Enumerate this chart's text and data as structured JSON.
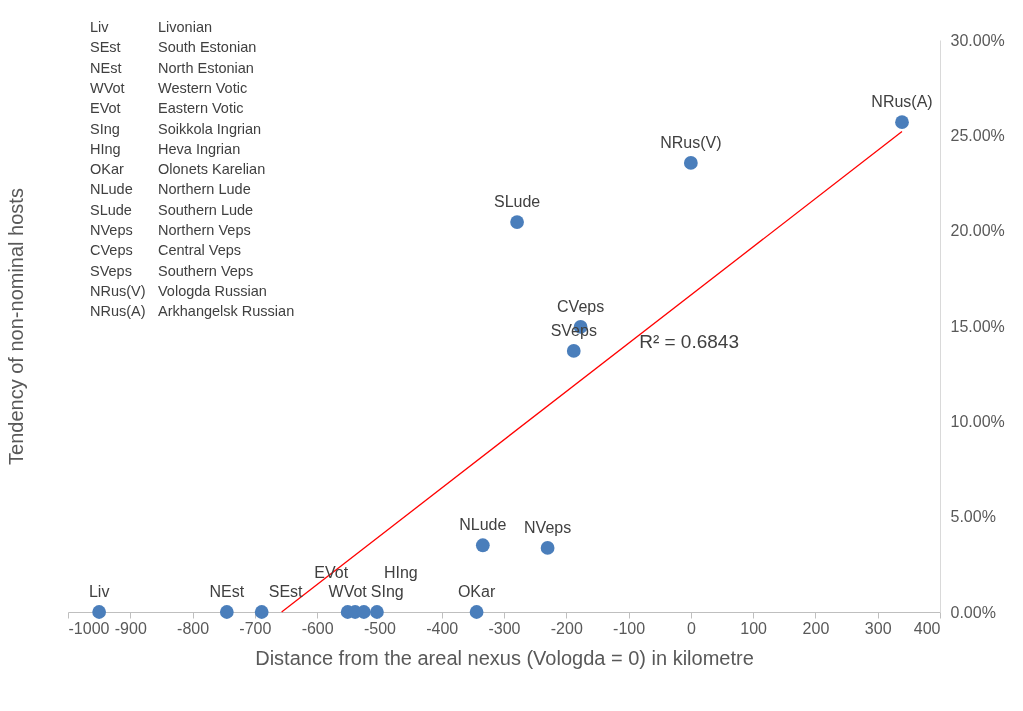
{
  "chart_data": {
    "type": "scatter",
    "xlabel": "Distance from the areal nexus (Vologda = 0) in kilometre",
    "ylabel": "Tendency of non-nominal hosts",
    "xlim": [
      -1000,
      400
    ],
    "xticks": [
      -1000,
      -900,
      -800,
      -700,
      -600,
      -500,
      -400,
      -300,
      -200,
      -100,
      0,
      100,
      200,
      300,
      400
    ],
    "ylim": [
      0,
      30
    ],
    "yticks": [
      {
        "value": 0,
        "label": "0.00%"
      },
      {
        "value": 5,
        "label": "5.00%"
      },
      {
        "value": 10,
        "label": "10.00%"
      },
      {
        "value": 15,
        "label": "15.00%"
      },
      {
        "value": 20,
        "label": "20.00%"
      },
      {
        "value": 25,
        "label": "25.00%"
      },
      {
        "value": 30,
        "label": "30.00%"
      }
    ],
    "series": [
      {
        "color": "#4a7ebb",
        "marker": "circle",
        "x": [
          -950,
          -745,
          -689,
          -551,
          -539,
          -525,
          -504,
          -344,
          -334,
          -279,
          -230,
          -177,
          -188,
          0,
          339
        ],
        "values": [
          0,
          0,
          0,
          0,
          0,
          0,
          0,
          0,
          3.5,
          20.45,
          3.36,
          14.95,
          13.69,
          23.55,
          25.69
        ]
      },
      {
        "type": "line",
        "color": "#ff0000",
        "x": [
          -657,
          339
        ],
        "values": [
          0,
          25.2
        ]
      }
    ],
    "annotations": [
      {
        "text": "Liv",
        "x": -950,
        "y": 0
      },
      {
        "text": "NEst",
        "x": -745,
        "y": 0
      },
      {
        "text": "SEst",
        "x": -689,
        "y": 0
      },
      {
        "text": "WVot",
        "x": -551,
        "y": 0
      },
      {
        "text": "EVot",
        "x": -539,
        "y": 0
      },
      {
        "text": "SIng",
        "x": -525,
        "y": 0
      },
      {
        "text": "HIng",
        "x": -504,
        "y": 0
      },
      {
        "text": "OKar",
        "x": -344,
        "y": 0
      },
      {
        "text": "NLude",
        "x": -334,
        "y": 3.5
      },
      {
        "text": "SLude",
        "x": -279,
        "y": 20.45
      },
      {
        "text": "NVeps",
        "x": -230,
        "y": 3.36
      },
      {
        "text": "CVeps",
        "x": -177,
        "y": 14.95
      },
      {
        "text": "SVeps",
        "x": -188,
        "y": 13.69
      },
      {
        "text": "NRus(V)",
        "x": 0,
        "y": 23.55
      },
      {
        "text": "NRus(A)",
        "x": 339,
        "y": 25.69
      },
      "R² = 0.6843",
      "Liv",
      "Livonian",
      "SEst",
      "South Estonian",
      "NEst",
      "North Estonian",
      "WVot",
      "Western Votic",
      "EVot",
      "Eastern Votic",
      "SIng",
      "Soikkola Ingrian",
      "HIng",
      "Heva Ingrian",
      "OKar",
      "Olonets Karelian",
      "NLude",
      "Northern Lude",
      "SLude",
      "Southern Lude",
      "NVeps",
      "Northern Veps",
      "CVeps",
      "Central Veps",
      "SVeps",
      "Southern Veps",
      "NRus(V)",
      "Vologda Russian",
      "NRus(A)",
      "Arkhangelsk Russian"
    ]
  }
}
